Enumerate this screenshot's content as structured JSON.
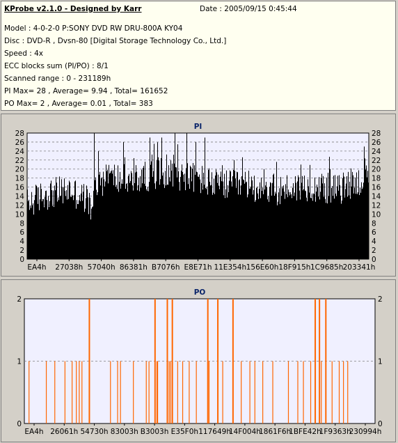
{
  "info": {
    "title": "KProbe v2.1.0 - Designed by Karr",
    "date": "Date : 2005/09/15 0:45:44",
    "model": "Model : 4-0-2-0 P:SONY    DVD RW DRU-800A  KY04",
    "disc": "Disc : DVD-R , Dvsn-80 [Digital Storage Technology Co., Ltd.]",
    "speed": "Speed : 4x",
    "ecc": "ECC blocks sum (PI/PO) : 8/1",
    "range": "Scanned range : 0 - 231189h",
    "pi_stats": "PI Max= 28 , Average= 9.94 , Total= 161652",
    "po_stats": "PO Max= 2 , Average= 0.01 , Total= 383"
  },
  "colors": {
    "pi_bars": "#000000",
    "po_bars": "#ff6600",
    "plot_bg": "#f0f0ff",
    "grid": "#808080",
    "title": "#0a246a"
  },
  "chart_data": [
    {
      "type": "bar",
      "title": "PI",
      "ylim": [
        0,
        28
      ],
      "yticks": [
        "0",
        "2",
        "4",
        "6",
        "8",
        "10",
        "12",
        "14",
        "16",
        "18",
        "20",
        "22",
        "24",
        "26",
        "28"
      ],
      "xticks": [
        "EA4h",
        "27038h",
        "57040h",
        "86381h",
        "B7076h",
        "E8E71h",
        "11E354h",
        "156E60h",
        "18F915h",
        "1C9685h",
        "203341h"
      ],
      "grid": "horizontal dashed",
      "bar_color": "#000000",
      "x_range": [
        0,
        231189
      ],
      "profile": {
        "x": [
          0,
          12000,
          28000,
          40000,
          44000,
          46000,
          55000,
          70000,
          90000,
          110000,
          130000,
          150000,
          170000,
          190000,
          210000,
          225000,
          231189
        ],
        "y": [
          12,
          14,
          15,
          13,
          10,
          16,
          18,
          17,
          19,
          18,
          16,
          16,
          15,
          16,
          15,
          17,
          17
        ]
      },
      "spikes": [
        {
          "x": 45000,
          "y": 28
        },
        {
          "x": 48000,
          "y": 24
        },
        {
          "x": 65000,
          "y": 26
        },
        {
          "x": 83000,
          "y": 27
        },
        {
          "x": 91000,
          "y": 27
        },
        {
          "x": 100000,
          "y": 28
        },
        {
          "x": 108000,
          "y": 28
        },
        {
          "x": 114000,
          "y": 26
        },
        {
          "x": 120000,
          "y": 27
        },
        {
          "x": 140000,
          "y": 22
        },
        {
          "x": 160000,
          "y": 20
        },
        {
          "x": 185000,
          "y": 21
        },
        {
          "x": 205000,
          "y": 20
        },
        {
          "x": 228000,
          "y": 25
        }
      ]
    },
    {
      "type": "bar",
      "title": "PO",
      "ylim": [
        0,
        2
      ],
      "yticks": [
        "0",
        "1",
        "2"
      ],
      "xticks": [
        "EA4h",
        "26061h",
        "54730h",
        "83003h",
        "B3003h",
        "E35F0h",
        "117649h",
        "14F004h",
        "1861F6h",
        "1BFE42h",
        "1F9363h",
        "230994h"
      ],
      "grid": "horizontal dashed",
      "bar_color": "#ff6600",
      "x_range": [
        0,
        231189
      ],
      "bars": [
        {
          "x": 2800,
          "y": 1
        },
        {
          "x": 14200,
          "y": 1
        },
        {
          "x": 19800,
          "y": 1
        },
        {
          "x": 26500,
          "y": 1
        },
        {
          "x": 31200,
          "y": 1
        },
        {
          "x": 34000,
          "y": 1
        },
        {
          "x": 35900,
          "y": 1
        },
        {
          "x": 37700,
          "y": 1
        },
        {
          "x": 42400,
          "y": 2
        },
        {
          "x": 56500,
          "y": 1
        },
        {
          "x": 61200,
          "y": 1
        },
        {
          "x": 63100,
          "y": 1
        },
        {
          "x": 71600,
          "y": 1
        },
        {
          "x": 80100,
          "y": 1
        },
        {
          "x": 81900,
          "y": 1
        },
        {
          "x": 85700,
          "y": 2
        },
        {
          "x": 87100,
          "y": 1
        },
        {
          "x": 87600,
          "y": 1
        },
        {
          "x": 93800,
          "y": 2
        },
        {
          "x": 95200,
          "y": 1
        },
        {
          "x": 96100,
          "y": 1
        },
        {
          "x": 97100,
          "y": 2
        },
        {
          "x": 100800,
          "y": 1
        },
        {
          "x": 104100,
          "y": 1
        },
        {
          "x": 108400,
          "y": 1
        },
        {
          "x": 113100,
          "y": 1
        },
        {
          "x": 120500,
          "y": 2
        },
        {
          "x": 121500,
          "y": 1
        },
        {
          "x": 127100,
          "y": 2
        },
        {
          "x": 130500,
          "y": 1
        },
        {
          "x": 137100,
          "y": 2
        },
        {
          "x": 142700,
          "y": 1
        },
        {
          "x": 148400,
          "y": 1
        },
        {
          "x": 151700,
          "y": 1
        },
        {
          "x": 156900,
          "y": 1
        },
        {
          "x": 163500,
          "y": 1
        },
        {
          "x": 173800,
          "y": 1
        },
        {
          "x": 180000,
          "y": 1
        },
        {
          "x": 183700,
          "y": 1
        },
        {
          "x": 188500,
          "y": 1
        },
        {
          "x": 191300,
          "y": 2
        },
        {
          "x": 194100,
          "y": 2
        },
        {
          "x": 195500,
          "y": 1
        },
        {
          "x": 198300,
          "y": 2
        },
        {
          "x": 202600,
          "y": 1
        },
        {
          "x": 207300,
          "y": 1
        },
        {
          "x": 210100,
          "y": 1
        },
        {
          "x": 212900,
          "y": 1
        }
      ]
    }
  ]
}
